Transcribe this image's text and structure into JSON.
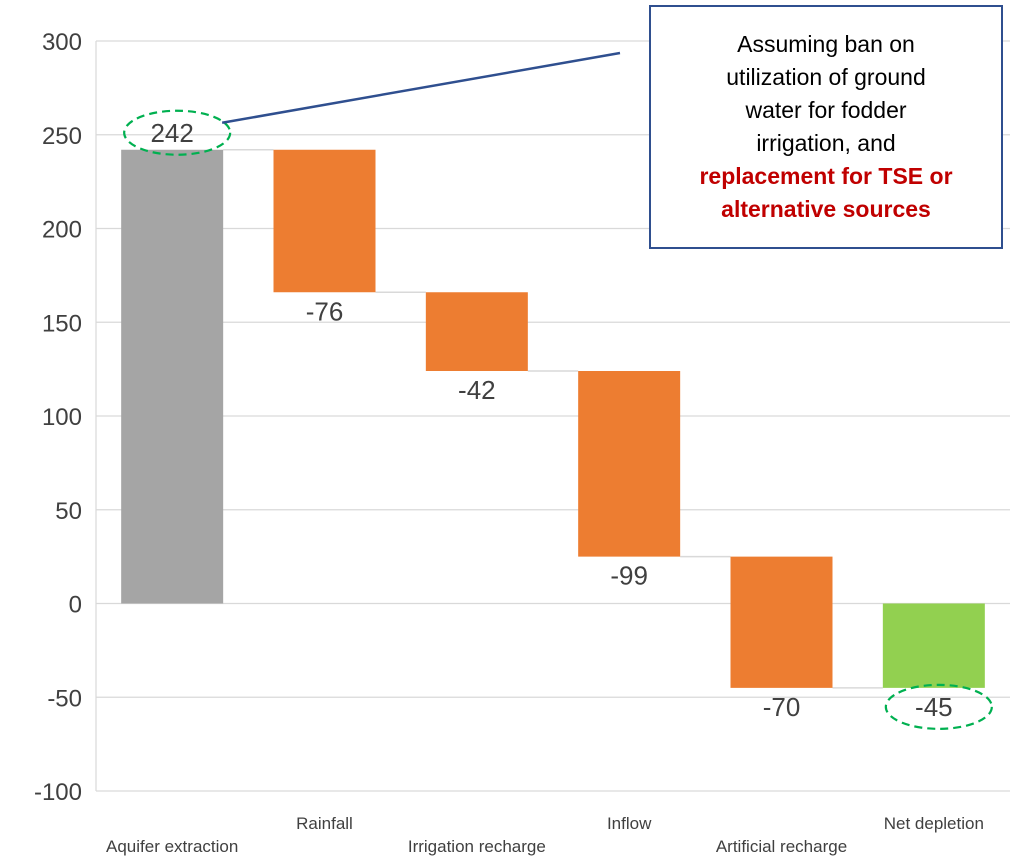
{
  "chart_data": {
    "type": "waterfall",
    "title": "",
    "xlabel": "",
    "ylabel": "",
    "ylim": [
      -100,
      300
    ],
    "yticks": [
      300,
      250,
      200,
      150,
      100,
      50,
      0,
      -50,
      -100
    ],
    "grid": true,
    "categories": [
      "Aquifer extraction",
      "Rainfall",
      "Irrigation recharge",
      "Inflow",
      "Artificial recharge",
      "Net depletion"
    ],
    "values": [
      242,
      -76,
      -42,
      -99,
      -70,
      -45
    ],
    "labels": [
      "242",
      "-76",
      "-42",
      "-99",
      "-70",
      "-45"
    ],
    "kinds": [
      "total",
      "step",
      "step",
      "step",
      "step",
      "total"
    ],
    "colors": {
      "total_start": "#A5A5A5",
      "step": "#ED7D31",
      "total_end": "#92D050",
      "highlight_ring": "#00B050",
      "grid": "#D9D9D9",
      "connector": "#D9D9D9",
      "callout_border": "#2F4F8F",
      "emphasis": "#C00000"
    },
    "highlighted": [
      "Aquifer extraction",
      "Net depletion"
    ],
    "annotation": {
      "text_normal": [
        "Assuming ban on",
        "utilization of ground",
        "water for fodder",
        "irrigation, and"
      ],
      "text_emphasis": [
        "replacement for TSE or",
        "alternative sources"
      ],
      "points_to": "Aquifer extraction"
    }
  }
}
